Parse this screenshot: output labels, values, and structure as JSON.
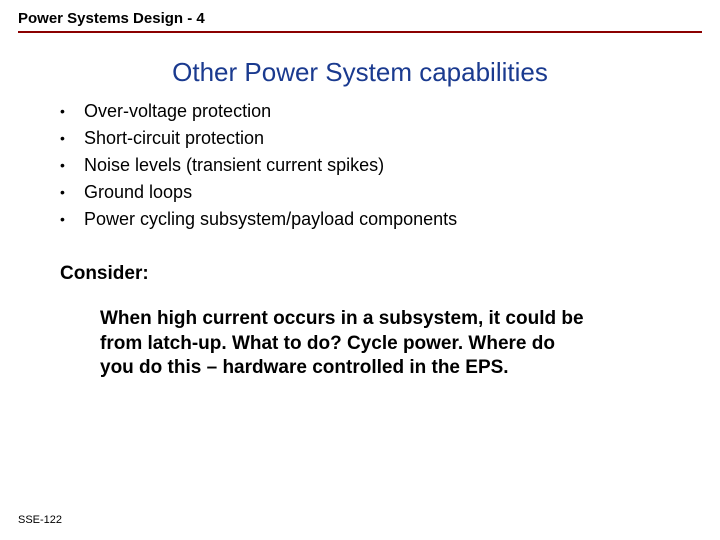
{
  "header": {
    "title": "Power Systems Design - 4"
  },
  "slide": {
    "title": "Other Power System capabilities",
    "title_color": "#1a3a8f",
    "title_fontsize": 26,
    "bullets": [
      "Over-voltage protection",
      "Short-circuit protection",
      "Noise levels (transient current spikes)",
      "Ground loops",
      "Power cycling subsystem/payload components"
    ],
    "bullet_fontsize": 18,
    "consider_label": "Consider:",
    "consider_text": "When high current occurs in a subsystem, it could be from latch-up.  What to do?  Cycle power.  Where do you do this – hardware controlled in the EPS.",
    "consider_fontsize": 19
  },
  "footer": {
    "label": "SSE-122"
  },
  "colors": {
    "header_line": "#8b0000",
    "background": "#ffffff",
    "text": "#000000"
  }
}
